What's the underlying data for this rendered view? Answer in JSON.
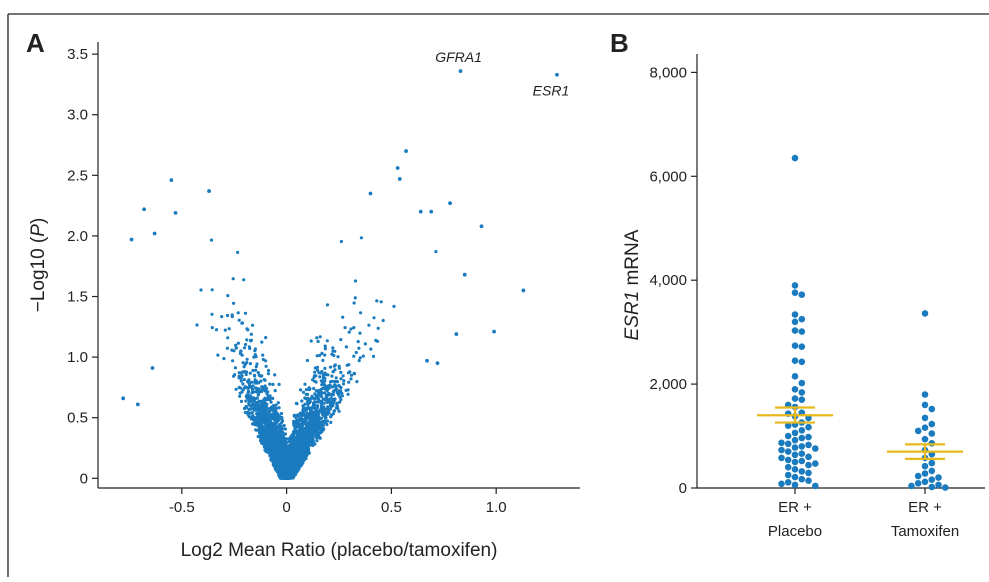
{
  "figure": {
    "panel_a_letter": "A",
    "panel_b_letter": "B"
  },
  "chart_data": [
    {
      "type": "scatter",
      "panel": "A",
      "xlabel": "Log2 Mean Ratio (placebo/tamoxifen)",
      "ylabel_prefix": "−Log10 (",
      "ylabel_italic": "P",
      "ylabel_suffix": ")",
      "xlim": [
        -0.9,
        1.4
      ],
      "ylim": [
        -0.08,
        3.6
      ],
      "xticks": [
        -0.5,
        0,
        0.5,
        1.0
      ],
      "xtick_labels": [
        "-0.5",
        "0",
        "0.5",
        "1.0"
      ],
      "yticks": [
        0,
        0.5,
        1.0,
        1.5,
        2.0,
        2.5,
        3.0,
        3.5
      ],
      "ytick_labels": [
        "0",
        "0.5",
        "1.0",
        "1.5",
        "2.0",
        "2.5",
        "3.0",
        "3.5"
      ],
      "point_color": "#1a7bbf",
      "annotations": [
        {
          "text": "GFRA1",
          "x": 0.83,
          "y": 3.36
        },
        {
          "text": "ESR1",
          "x": 1.29,
          "y": 3.33
        }
      ],
      "highlight_points": [
        {
          "x": 0.83,
          "y": 3.36
        },
        {
          "x": 1.29,
          "y": 3.33
        },
        {
          "x": -0.55,
          "y": 2.46
        },
        {
          "x": -0.37,
          "y": 2.37
        },
        {
          "x": -0.68,
          "y": 2.22
        },
        {
          "x": -0.53,
          "y": 2.19
        },
        {
          "x": -0.74,
          "y": 1.97
        },
        {
          "x": -0.63,
          "y": 2.02
        },
        {
          "x": -0.78,
          "y": 0.66
        },
        {
          "x": -0.71,
          "y": 0.61
        },
        {
          "x": -0.64,
          "y": 0.91
        },
        {
          "x": 0.57,
          "y": 2.7
        },
        {
          "x": 0.53,
          "y": 2.56
        },
        {
          "x": 0.54,
          "y": 2.47
        },
        {
          "x": 0.4,
          "y": 2.35
        },
        {
          "x": 0.78,
          "y": 2.27
        },
        {
          "x": 0.64,
          "y": 2.2
        },
        {
          "x": 0.69,
          "y": 2.2
        },
        {
          "x": 0.93,
          "y": 2.08
        },
        {
          "x": 0.85,
          "y": 1.68
        },
        {
          "x": 1.13,
          "y": 1.55
        },
        {
          "x": 0.99,
          "y": 1.21
        },
        {
          "x": 0.81,
          "y": 1.19
        },
        {
          "x": 0.67,
          "y": 0.97
        },
        {
          "x": 0.72,
          "y": 0.95
        }
      ],
      "cloud": {
        "n_points": 5200,
        "seed": 7,
        "left_slope": -0.2,
        "right_slope": 0.26,
        "y_decay": 0.26,
        "y_max": 2.45
      }
    },
    {
      "type": "scatter",
      "panel": "B",
      "ylabel_italic": "ESR1",
      "ylabel_suffix": " mRNA",
      "ylim": [
        0,
        8200
      ],
      "yticks": [
        0,
        2000,
        4000,
        6000,
        8000
      ],
      "ytick_labels": [
        "0",
        "2,000",
        "4,000",
        "6,000",
        "8,000"
      ],
      "categories": [
        {
          "line1": "ER +",
          "line2": "Placebo"
        },
        {
          "line1": "ER +",
          "line2": "Tamoxifen"
        }
      ],
      "point_color": "#1a7bbf",
      "error_color": "#e8b91c",
      "series": [
        {
          "mean": 1400,
          "sem_low": 1260,
          "sem_high": 1550,
          "values": [
            6350,
            3900,
            3760,
            3720,
            3340,
            3250,
            3200,
            3030,
            3010,
            2740,
            2720,
            2450,
            2430,
            2150,
            2020,
            1900,
            1840,
            1720,
            1700,
            1600,
            1560,
            1450,
            1430,
            1380,
            1350,
            1260,
            1220,
            1200,
            1170,
            1110,
            1060,
            1000,
            980,
            960,
            920,
            870,
            850,
            830,
            800,
            780,
            760,
            730,
            700,
            660,
            640,
            600,
            580,
            540,
            520,
            500,
            470,
            440,
            400,
            360,
            320,
            290,
            250,
            210,
            170,
            140,
            110,
            80,
            60,
            40
          ]
        },
        {
          "mean": 700,
          "sem_low": 560,
          "sem_high": 840,
          "values": [
            3360,
            1800,
            1600,
            1520,
            1350,
            1230,
            1160,
            1100,
            1050,
            940,
            860,
            730,
            650,
            580,
            480,
            420,
            330,
            280,
            230,
            200,
            160,
            120,
            90,
            60,
            40,
            20,
            10
          ]
        }
      ]
    }
  ]
}
